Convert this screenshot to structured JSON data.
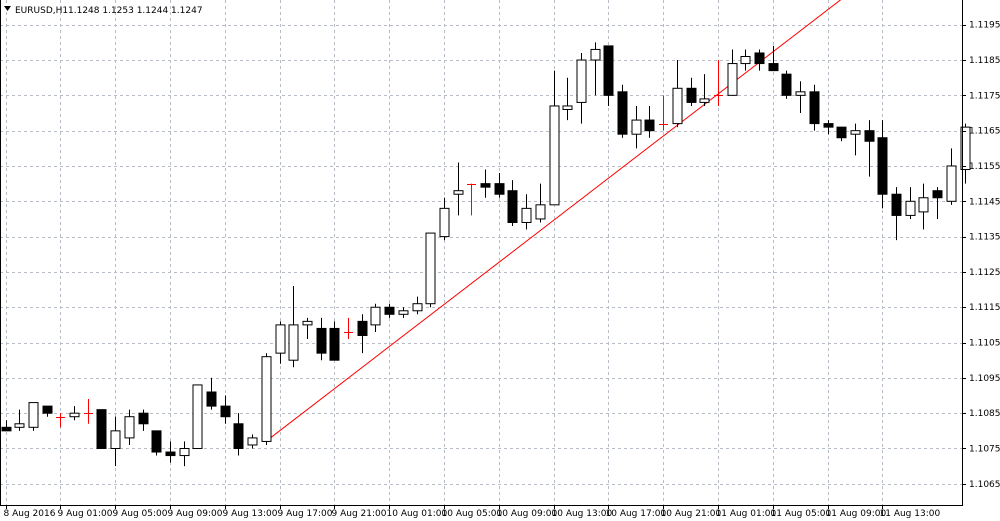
{
  "header": {
    "symbol": "EURUSD,H1",
    "ohlc": "1.1248 1.1253 1.1244 1.1247"
  },
  "colors": {
    "background": "#ffffff",
    "grid": "#b7bdc6",
    "candle": "#000000",
    "trendline": "#ff0000",
    "doji": "#ff0000"
  },
  "chart_data": {
    "type": "candlestick",
    "ylim": [
      1.1059,
      1.1202
    ],
    "y_ticks": [
      "1.1195",
      "1.1185",
      "1.1175",
      "1.1165",
      "1.1155",
      "1.1145",
      "1.1135",
      "1.1125",
      "1.1115",
      "1.1105",
      "1.1095",
      "1.1085",
      "1.1075",
      "1.1065"
    ],
    "y_tick_values": [
      1.1195,
      1.1185,
      1.1175,
      1.1165,
      1.1155,
      1.1145,
      1.1135,
      1.1125,
      1.1115,
      1.1105,
      1.1095,
      1.1085,
      1.1075,
      1.1065
    ],
    "x_ticks": [
      {
        "label": "8 Aug 2016",
        "bar": 0
      },
      {
        "label": "9 Aug 01:00",
        "bar": 4
      },
      {
        "label": "9 Aug 05:00",
        "bar": 8
      },
      {
        "label": "9 Aug 09:00",
        "bar": 12
      },
      {
        "label": "9 Aug 13:00",
        "bar": 16
      },
      {
        "label": "9 Aug 17:00",
        "bar": 20
      },
      {
        "label": "9 Aug 21:00",
        "bar": 24
      },
      {
        "label": "10 Aug 01:00",
        "bar": 28
      },
      {
        "label": "10 Aug 05:00",
        "bar": 32
      },
      {
        "label": "10 Aug 09:00",
        "bar": 36
      },
      {
        "label": "10 Aug 13:00",
        "bar": 40
      },
      {
        "label": "10 Aug 17:00",
        "bar": 44
      },
      {
        "label": "10 Aug 21:00",
        "bar": 48
      },
      {
        "label": "11 Aug 01:00",
        "bar": 52
      },
      {
        "label": "11 Aug 05:00",
        "bar": 56
      },
      {
        "label": "11 Aug 09:00",
        "bar": 60
      },
      {
        "label": "11 Aug 13:00",
        "bar": 64
      }
    ],
    "candles": [
      {
        "o": 1.1081,
        "h": 1.1083,
        "l": 1.108,
        "c": 1.108
      },
      {
        "o": 1.1081,
        "h": 1.1086,
        "l": 1.108,
        "c": 1.1082
      },
      {
        "o": 1.1081,
        "h": 1.1088,
        "l": 1.108,
        "c": 1.1088
      },
      {
        "o": 1.1087,
        "h": 1.1087,
        "l": 1.1084,
        "c": 1.1085
      },
      {
        "o": 1.1084,
        "h": 1.1085,
        "l": 1.1081,
        "c": 1.1084
      },
      {
        "o": 1.1084,
        "h": 1.1087,
        "l": 1.1083,
        "c": 1.1085
      },
      {
        "o": 1.1085,
        "h": 1.1089,
        "l": 1.1082,
        "c": 1.1085
      },
      {
        "o": 1.1086,
        "h": 1.1086,
        "l": 1.1075,
        "c": 1.1075
      },
      {
        "o": 1.1075,
        "h": 1.1084,
        "l": 1.107,
        "c": 1.108
      },
      {
        "o": 1.1078,
        "h": 1.1086,
        "l": 1.1076,
        "c": 1.1084
      },
      {
        "o": 1.1085,
        "h": 1.1086,
        "l": 1.108,
        "c": 1.1082
      },
      {
        "o": 1.108,
        "h": 1.108,
        "l": 1.1073,
        "c": 1.1074
      },
      {
        "o": 1.1074,
        "h": 1.1077,
        "l": 1.1071,
        "c": 1.1073
      },
      {
        "o": 1.1073,
        "h": 1.1077,
        "l": 1.107,
        "c": 1.1075
      },
      {
        "o": 1.1075,
        "h": 1.1093,
        "l": 1.1075,
        "c": 1.1093
      },
      {
        "o": 1.1091,
        "h": 1.1095,
        "l": 1.1086,
        "c": 1.1087
      },
      {
        "o": 1.1087,
        "h": 1.109,
        "l": 1.1082,
        "c": 1.1084
      },
      {
        "o": 1.1082,
        "h": 1.1085,
        "l": 1.1073,
        "c": 1.1075
      },
      {
        "o": 1.1076,
        "h": 1.1079,
        "l": 1.1075,
        "c": 1.1078
      },
      {
        "o": 1.1077,
        "h": 1.1102,
        "l": 1.1076,
        "c": 1.1101
      },
      {
        "o": 1.1102,
        "h": 1.1111,
        "l": 1.1099,
        "c": 1.111
      },
      {
        "o": 1.11,
        "h": 1.1121,
        "l": 1.1098,
        "c": 1.111
      },
      {
        "o": 1.111,
        "h": 1.1112,
        "l": 1.1106,
        "c": 1.1111
      },
      {
        "o": 1.1109,
        "h": 1.1112,
        "l": 1.11,
        "c": 1.1102
      },
      {
        "o": 1.1109,
        "h": 1.1111,
        "l": 1.11,
        "c": 1.11
      },
      {
        "o": 1.1108,
        "h": 1.1112,
        "l": 1.1106,
        "c": 1.1108
      },
      {
        "o": 1.1111,
        "h": 1.1113,
        "l": 1.1102,
        "c": 1.1107
      },
      {
        "o": 1.111,
        "h": 1.1116,
        "l": 1.1108,
        "c": 1.1115
      },
      {
        "o": 1.1115,
        "h": 1.1116,
        "l": 1.1112,
        "c": 1.1113
      },
      {
        "o": 1.1113,
        "h": 1.1115,
        "l": 1.1112,
        "c": 1.1114
      },
      {
        "o": 1.1114,
        "h": 1.1118,
        "l": 1.1113,
        "c": 1.1116
      },
      {
        "o": 1.1116,
        "h": 1.1136,
        "l": 1.1115,
        "c": 1.1136
      },
      {
        "o": 1.1135,
        "h": 1.1146,
        "l": 1.1134,
        "c": 1.1143
      },
      {
        "o": 1.1147,
        "h": 1.1156,
        "l": 1.1141,
        "c": 1.1148
      },
      {
        "o": 1.115,
        "h": 1.115,
        "l": 1.1141,
        "c": 1.115
      },
      {
        "o": 1.115,
        "h": 1.1154,
        "l": 1.1146,
        "c": 1.1149
      },
      {
        "o": 1.115,
        "h": 1.1153,
        "l": 1.1146,
        "c": 1.1147
      },
      {
        "o": 1.1148,
        "h": 1.1151,
        "l": 1.1138,
        "c": 1.1139
      },
      {
        "o": 1.1139,
        "h": 1.1147,
        "l": 1.1137,
        "c": 1.1143
      },
      {
        "o": 1.114,
        "h": 1.115,
        "l": 1.1139,
        "c": 1.1144
      },
      {
        "o": 1.1144,
        "h": 1.1182,
        "l": 1.1144,
        "c": 1.1172
      },
      {
        "o": 1.1171,
        "h": 1.118,
        "l": 1.1168,
        "c": 1.1172
      },
      {
        "o": 1.1173,
        "h": 1.1187,
        "l": 1.1167,
        "c": 1.1185
      },
      {
        "o": 1.1185,
        "h": 1.119,
        "l": 1.1175,
        "c": 1.1188
      },
      {
        "o": 1.1189,
        "h": 1.1189,
        "l": 1.1172,
        "c": 1.1175
      },
      {
        "o": 1.1176,
        "h": 1.1178,
        "l": 1.1163,
        "c": 1.1164
      },
      {
        "o": 1.1164,
        "h": 1.1172,
        "l": 1.116,
        "c": 1.1168
      },
      {
        "o": 1.1168,
        "h": 1.1172,
        "l": 1.1163,
        "c": 1.1165
      },
      {
        "o": 1.1167,
        "h": 1.1175,
        "l": 1.1165,
        "c": 1.1167
      },
      {
        "o": 1.1167,
        "h": 1.1185,
        "l": 1.1166,
        "c": 1.1177
      },
      {
        "o": 1.1177,
        "h": 1.118,
        "l": 1.1172,
        "c": 1.1173
      },
      {
        "o": 1.1173,
        "h": 1.1181,
        "l": 1.1172,
        "c": 1.1174
      },
      {
        "o": 1.1175,
        "h": 1.1185,
        "l": 1.1172,
        "c": 1.1175
      },
      {
        "o": 1.1175,
        "h": 1.1188,
        "l": 1.1175,
        "c": 1.1184
      },
      {
        "o": 1.1184,
        "h": 1.1188,
        "l": 1.1182,
        "c": 1.1186
      },
      {
        "o": 1.1187,
        "h": 1.1188,
        "l": 1.1182,
        "c": 1.1184
      },
      {
        "o": 1.1184,
        "h": 1.1189,
        "l": 1.1182,
        "c": 1.1182
      },
      {
        "o": 1.1181,
        "h": 1.1182,
        "l": 1.1174,
        "c": 1.1175
      },
      {
        "o": 1.1175,
        "h": 1.1179,
        "l": 1.117,
        "c": 1.1176
      },
      {
        "o": 1.1176,
        "h": 1.1178,
        "l": 1.1165,
        "c": 1.1167
      },
      {
        "o": 1.1167,
        "h": 1.1168,
        "l": 1.1164,
        "c": 1.1166
      },
      {
        "o": 1.1166,
        "h": 1.1166,
        "l": 1.1162,
        "c": 1.1163
      },
      {
        "o": 1.1164,
        "h": 1.1167,
        "l": 1.1158,
        "c": 1.1165
      },
      {
        "o": 1.1165,
        "h": 1.1168,
        "l": 1.1152,
        "c": 1.1162
      },
      {
        "o": 1.1163,
        "h": 1.1168,
        "l": 1.1143,
        "c": 1.1147
      },
      {
        "o": 1.1147,
        "h": 1.1149,
        "l": 1.1134,
        "c": 1.1141
      },
      {
        "o": 1.1141,
        "h": 1.1149,
        "l": 1.114,
        "c": 1.1145
      },
      {
        "o": 1.1142,
        "h": 1.115,
        "l": 1.1137,
        "c": 1.1146
      },
      {
        "o": 1.1148,
        "h": 1.1149,
        "l": 1.114,
        "c": 1.1146
      },
      {
        "o": 1.1145,
        "h": 1.116,
        "l": 1.1144,
        "c": 1.1155
      },
      {
        "o": 1.1154,
        "h": 1.1167,
        "l": 1.115,
        "c": 1.1166
      }
    ],
    "trendline": {
      "from_bar": 19,
      "from_price": 1.1077,
      "to_bar": 70,
      "to_price": 1.1229
    }
  }
}
